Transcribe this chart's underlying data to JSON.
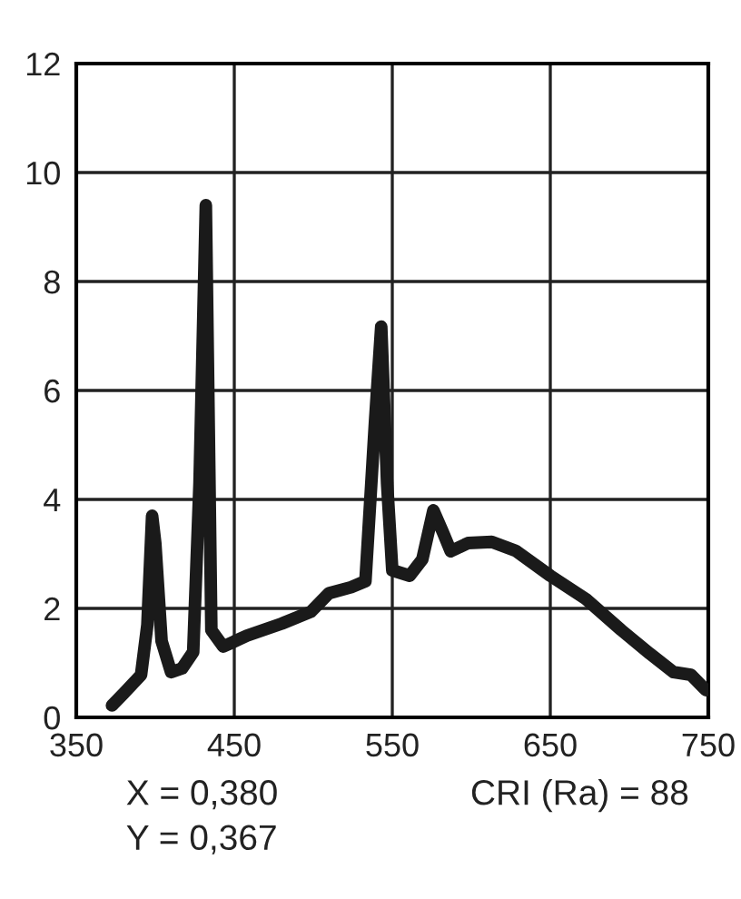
{
  "chart_data": {
    "type": "line",
    "x": [
      372.6,
      380,
      391,
      395,
      398,
      400,
      404,
      410,
      417,
      424,
      428,
      432,
      435.5,
      443,
      458,
      480,
      498.5,
      510,
      524,
      533,
      539,
      543,
      546.7,
      550,
      561,
      569,
      576,
      582,
      587,
      598,
      613,
      628,
      650,
      672.6,
      695,
      713,
      728,
      739,
      748.5
    ],
    "series": [
      {
        "color": "#1a1a1a",
        "values": [
          0.22,
          0.44,
          0.78,
          1.7,
          3.7,
          3.2,
          1.4,
          0.83,
          0.9,
          1.2,
          4.3,
          9.4,
          1.6,
          1.3,
          1.5,
          1.72,
          1.94,
          2.28,
          2.39,
          2.5,
          5.4,
          7.17,
          4.3,
          2.7,
          2.6,
          2.9,
          3.8,
          3.4,
          3.05,
          3.2,
          3.22,
          3.06,
          2.6,
          2.17,
          1.6,
          1.17,
          0.83,
          0.78,
          0.5
        ]
      }
    ],
    "xlim": [
      350,
      750
    ],
    "xticks": [
      350,
      450,
      550,
      650,
      750
    ],
    "ylim": [
      0,
      12
    ],
    "yticks": [
      0,
      2,
      4,
      6,
      8,
      10,
      12
    ],
    "grid": true,
    "marker": "none",
    "line_style": "solid",
    "legend": false,
    "annotations": [
      "X = 0,380",
      "Y = 0,367",
      "CRI (Ra) = 88"
    ]
  }
}
